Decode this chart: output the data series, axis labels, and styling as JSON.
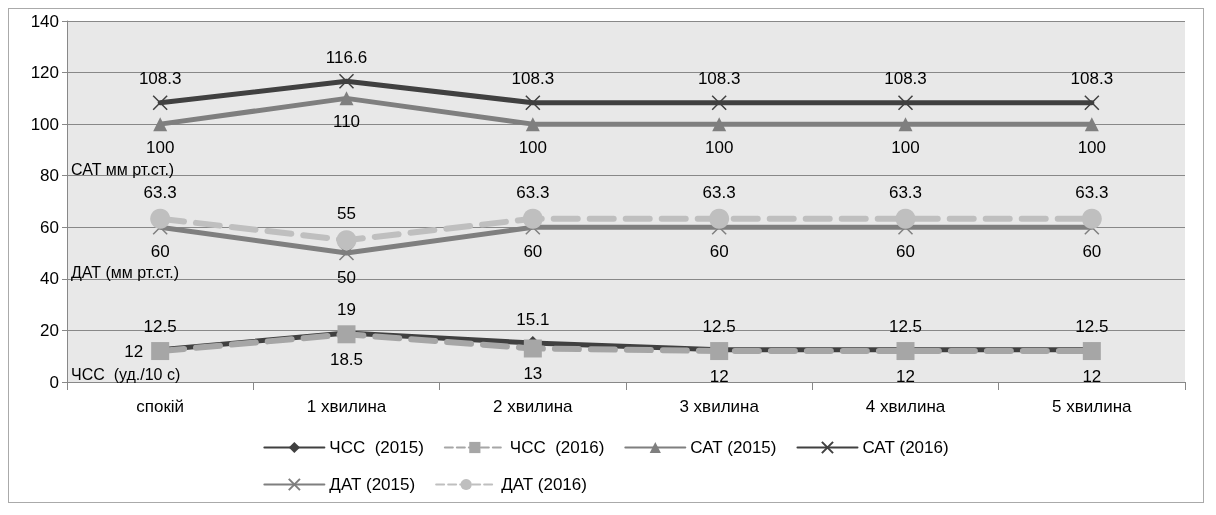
{
  "chart_data": {
    "type": "line",
    "categories": [
      "спокій",
      "1 хвилина",
      "2 хвилина",
      "3 хвилина",
      "4 хвилина",
      "5 хвилина"
    ],
    "series": [
      {
        "name": "ЧСС  (2015)",
        "color": "#404040",
        "marker": "diamond",
        "line_style": "solid",
        "values": [
          12.5,
          19,
          15.1,
          12.5,
          12.5,
          12.5
        ]
      },
      {
        "name": "ЧСС  (2016)",
        "color": "#a6a6a6",
        "marker": "square",
        "line_style": "dashed",
        "values": [
          12,
          18.5,
          13,
          12,
          12,
          12
        ]
      },
      {
        "name": "САТ (2015)",
        "color": "#7f7f7f",
        "marker": "triangle",
        "line_style": "solid",
        "values": [
          100,
          110,
          100,
          100,
          100,
          100
        ]
      },
      {
        "name": "САТ (2016)",
        "color": "#404040",
        "marker": "cross",
        "line_style": "solid",
        "values": [
          108.3,
          116.6,
          108.3,
          108.3,
          108.3,
          108.3
        ]
      },
      {
        "name": "ДАТ (2015)",
        "color": "#7f7f7f",
        "marker": "cross",
        "line_style": "solid",
        "values": [
          60,
          50,
          60,
          60,
          60,
          60
        ]
      },
      {
        "name": "ДАТ (2016)",
        "color": "#bfbfbf",
        "marker": "circle",
        "line_style": "dashed",
        "values": [
          63.3,
          55,
          63.3,
          63.3,
          63.3,
          63.3
        ]
      }
    ],
    "ylim": [
      0,
      140
    ],
    "yticks": [
      0,
      20,
      40,
      60,
      80,
      100,
      120,
      140
    ],
    "grid": "y",
    "legend": "bottom",
    "data_labels": true,
    "annotations": [
      "САТ мм рт.ст.)",
      "ДАТ (мм рт.ст.)",
      "ЧСС  (уд./10 с)"
    ]
  }
}
